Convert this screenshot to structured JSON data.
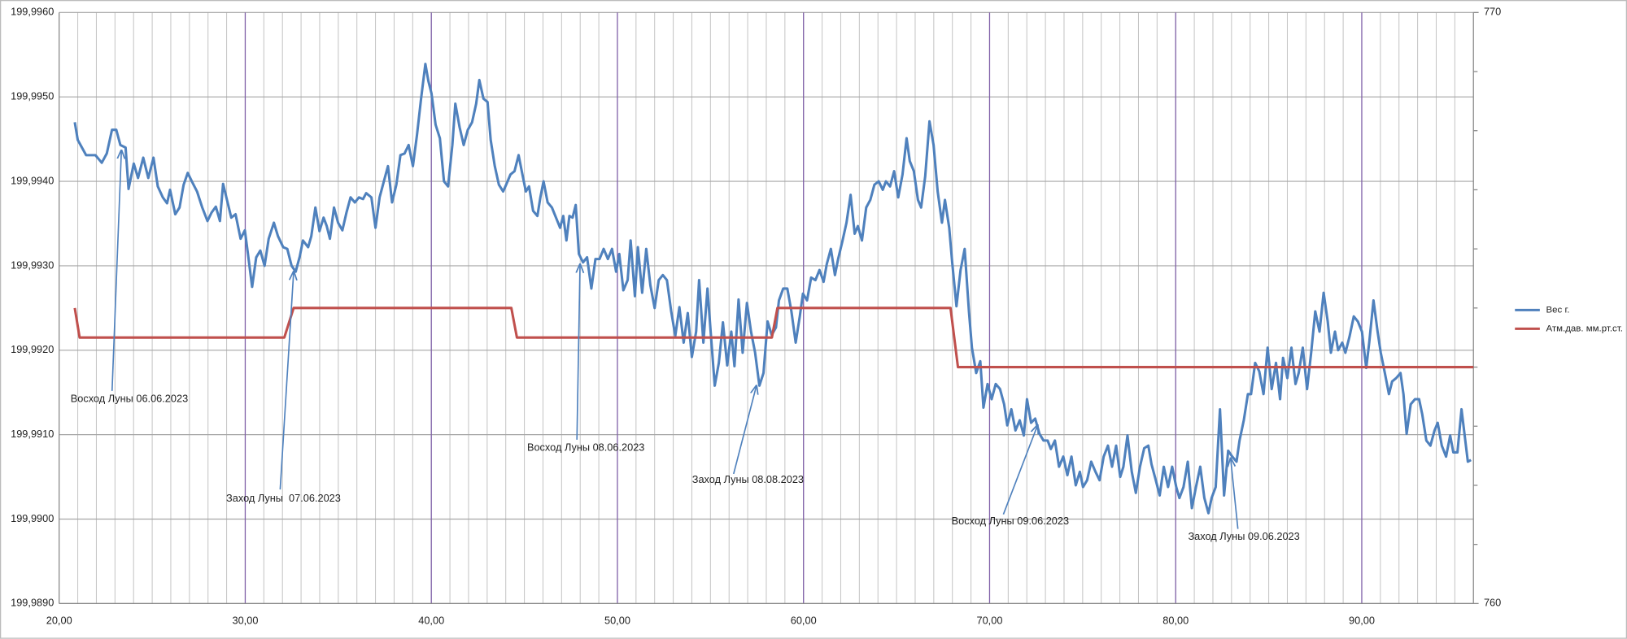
{
  "chart_data": {
    "type": "line",
    "xlim": [
      20,
      96
    ],
    "xticks": [
      {
        "value": 20,
        "label": "20,00"
      },
      {
        "value": 30,
        "label": "30,00"
      },
      {
        "value": 40,
        "label": "40,00"
      },
      {
        "value": 50,
        "label": "50,00"
      },
      {
        "value": 60,
        "label": "60,00"
      },
      {
        "value": 70,
        "label": "70,00"
      },
      {
        "value": 80,
        "label": "80,00"
      },
      {
        "value": 90,
        "label": "90,00"
      }
    ],
    "x_minor_grid_step": 1,
    "ylim": [
      199.989,
      199.996
    ],
    "yticks": [
      {
        "value": 199.989,
        "label": "199,9890"
      },
      {
        "value": 199.99,
        "label": "199,9900"
      },
      {
        "value": 199.991,
        "label": "199,9910"
      },
      {
        "value": 199.992,
        "label": "199,9920"
      },
      {
        "value": 199.993,
        "label": "199,9930"
      },
      {
        "value": 199.994,
        "label": "199,9940"
      },
      {
        "value": 199.995,
        "label": "199,9950"
      },
      {
        "value": 199.996,
        "label": "199,9960"
      }
    ],
    "y2lim": [
      760,
      770
    ],
    "y2ticks": [
      760,
      770
    ],
    "y2_minor_step": 1,
    "grid": true,
    "legend": "right",
    "series": [
      {
        "name": "Вес г.",
        "color": "#4f81bd",
        "x": [
          20.84,
          21.0,
          21.45,
          21.95,
          22.29,
          22.56,
          22.84,
          23.07,
          23.29,
          23.57,
          23.73,
          24.01,
          24.24,
          24.52,
          24.79,
          25.07,
          25.3,
          25.57,
          25.8,
          25.96,
          26.24,
          26.47,
          26.69,
          26.91,
          27.13,
          27.41,
          27.69,
          27.97,
          28.19,
          28.42,
          28.64,
          28.81,
          29.03,
          29.25,
          29.48,
          29.75,
          29.98,
          30.14,
          30.37,
          30.59,
          30.81,
          31.04,
          31.26,
          31.54,
          31.76,
          32.04,
          32.26,
          32.49,
          32.71,
          32.93,
          33.1,
          33.38,
          33.55,
          33.77,
          33.99,
          34.21,
          34.38,
          34.55,
          34.77,
          34.99,
          35.22,
          35.44,
          35.66,
          35.89,
          36.11,
          36.33,
          36.5,
          36.78,
          37.0,
          37.22,
          37.45,
          37.67,
          37.89,
          38.12,
          38.34,
          38.56,
          38.78,
          39.01,
          39.23,
          39.45,
          39.68,
          39.84,
          40.01,
          40.23,
          40.46,
          40.68,
          40.9,
          41.13,
          41.29,
          41.52,
          41.74,
          41.96,
          42.19,
          42.41,
          42.58,
          42.8,
          43.02,
          43.19,
          43.41,
          43.63,
          43.86,
          44.02,
          44.25,
          44.47,
          44.69,
          44.86,
          45.08,
          45.25,
          45.47,
          45.7,
          45.86,
          46.03,
          46.25,
          46.48,
          46.7,
          46.92,
          47.09,
          47.26,
          47.42,
          47.59,
          47.76,
          47.93,
          48.15,
          48.37,
          48.6,
          48.82,
          49.04,
          49.26,
          49.49,
          49.71,
          49.93,
          50.1,
          50.32,
          50.55,
          50.71,
          50.94,
          51.1,
          51.33,
          51.55,
          51.77,
          52.0,
          52.22,
          52.44,
          52.66,
          52.89,
          53.11,
          53.33,
          53.56,
          53.78,
          54.0,
          54.23,
          54.39,
          54.62,
          54.84,
          55.01,
          55.23,
          55.45,
          55.67,
          55.9,
          56.12,
          56.29,
          56.51,
          56.73,
          56.96,
          57.18,
          57.4,
          57.63,
          57.85,
          58.07,
          58.29,
          58.52,
          58.68,
          58.91,
          59.13,
          59.35,
          59.58,
          59.8,
          59.97,
          60.19,
          60.41,
          60.64,
          60.86,
          61.08,
          61.25,
          61.47,
          61.69,
          61.86,
          62.09,
          62.31,
          62.53,
          62.75,
          62.92,
          63.14,
          63.37,
          63.59,
          63.81,
          64.04,
          64.26,
          64.43,
          64.65,
          64.87,
          65.09,
          65.32,
          65.54,
          65.71,
          65.93,
          66.15,
          66.32,
          66.54,
          66.77,
          66.99,
          67.21,
          67.44,
          67.6,
          67.83,
          67.99,
          68.22,
          68.44,
          68.66,
          68.89,
          69.05,
          69.28,
          69.5,
          69.67,
          69.89,
          70.11,
          70.33,
          70.56,
          70.78,
          70.95,
          71.17,
          71.39,
          71.62,
          71.84,
          72.01,
          72.23,
          72.45,
          72.68,
          72.9,
          73.12,
          73.29,
          73.51,
          73.73,
          73.96,
          74.18,
          74.4,
          74.63,
          74.85,
          75.02,
          75.24,
          75.46,
          75.69,
          75.91,
          76.13,
          76.36,
          76.58,
          76.8,
          77.02,
          77.19,
          77.41,
          77.64,
          77.86,
          78.08,
          78.31,
          78.53,
          78.7,
          78.92,
          79.14,
          79.36,
          79.59,
          79.81,
          80.03,
          80.2,
          80.42,
          80.65,
          80.87,
          81.09,
          81.32,
          81.54,
          81.76,
          81.93,
          82.15,
          82.38,
          82.6,
          82.82,
          83.04,
          83.27,
          83.43,
          83.66,
          83.88,
          84.05,
          84.27,
          84.49,
          84.72,
          84.94,
          85.16,
          85.39,
          85.61,
          85.77,
          86.0,
          86.22,
          86.44,
          86.61,
          86.83,
          87.06,
          87.28,
          87.5,
          87.73,
          87.95,
          88.17,
          88.34,
          88.56,
          88.73,
          88.95,
          89.12,
          89.34,
          89.57,
          89.79,
          90.01,
          90.24,
          90.4,
          90.63,
          90.85,
          91.02,
          91.24,
          91.46,
          91.63,
          91.85,
          92.08,
          92.24,
          92.41,
          92.63,
          92.86,
          93.08,
          93.25,
          93.47,
          93.69,
          93.91,
          94.08,
          94.3,
          94.53,
          94.75,
          94.92,
          95.14,
          95.36,
          95.53,
          95.7,
          95.87
        ],
        "values": [
          199.9947,
          199.99449,
          199.99431,
          199.99431,
          199.99422,
          199.99433,
          199.99461,
          199.99461,
          199.99443,
          199.9944,
          199.99391,
          199.99421,
          199.99404,
          199.99428,
          199.99404,
          199.99428,
          199.99394,
          199.99381,
          199.99374,
          199.9939,
          199.99361,
          199.99369,
          199.99396,
          199.9941,
          199.994,
          199.99388,
          199.99369,
          199.99353,
          199.99363,
          199.9937,
          199.99353,
          199.99397,
          199.99377,
          199.99357,
          199.99361,
          199.99332,
          199.99342,
          199.99315,
          199.99275,
          199.9931,
          199.99318,
          199.993,
          199.99332,
          199.99351,
          199.99335,
          199.99322,
          199.9932,
          199.993,
          199.99293,
          199.99311,
          199.9933,
          199.99322,
          199.99335,
          199.99369,
          199.99341,
          199.99357,
          199.99347,
          199.99332,
          199.99369,
          199.99351,
          199.99342,
          199.99363,
          199.99381,
          199.99375,
          199.99381,
          199.99379,
          199.99386,
          199.99381,
          199.99345,
          199.99381,
          199.994,
          199.99418,
          199.99375,
          199.99396,
          199.99431,
          199.99433,
          199.99443,
          199.99418,
          199.99455,
          199.99498,
          199.99539,
          199.99519,
          199.99504,
          199.99467,
          199.99451,
          199.994,
          199.99394,
          199.99443,
          199.99492,
          199.99464,
          199.99443,
          199.99461,
          199.9947,
          199.99492,
          199.9952,
          199.99498,
          199.99494,
          199.99449,
          199.99418,
          199.99396,
          199.99388,
          199.99396,
          199.99408,
          199.99412,
          199.99431,
          199.99412,
          199.99388,
          199.99394,
          199.99365,
          199.99359,
          199.99381,
          199.994,
          199.99375,
          199.99369,
          199.99357,
          199.99345,
          199.99359,
          199.9933,
          199.99359,
          199.99357,
          199.99372,
          199.99314,
          199.99304,
          199.9931,
          199.99273,
          199.99308,
          199.99308,
          199.9932,
          199.99308,
          199.9932,
          199.99293,
          199.99314,
          199.99271,
          199.99283,
          199.9933,
          199.99264,
          199.99322,
          199.99268,
          199.9932,
          199.99277,
          199.9925,
          199.99283,
          199.99289,
          199.99283,
          199.99246,
          199.99217,
          199.99251,
          199.99209,
          199.99244,
          199.99192,
          199.99222,
          199.99283,
          199.99209,
          199.99273,
          199.99222,
          199.99158,
          199.99185,
          199.99233,
          199.99182,
          199.99222,
          199.99181,
          199.9926,
          199.99197,
          199.99256,
          199.99222,
          199.99197,
          199.99158,
          199.99173,
          199.99234,
          199.99218,
          199.99227,
          199.99259,
          199.99273,
          199.99273,
          199.99246,
          199.99209,
          199.9924,
          199.99267,
          199.99259,
          199.99286,
          199.99283,
          199.99295,
          199.99281,
          199.99302,
          199.9932,
          199.99289,
          199.99308,
          199.99329,
          199.99351,
          199.99384,
          199.99338,
          199.99347,
          199.9933,
          199.99369,
          199.99378,
          199.99396,
          199.994,
          199.9939,
          199.994,
          199.99394,
          199.99412,
          199.99381,
          199.99408,
          199.99451,
          199.99424,
          199.99412,
          199.99378,
          199.99369,
          199.99406,
          199.99471,
          199.99443,
          199.99388,
          199.99351,
          199.99378,
          199.99345,
          199.99304,
          199.99252,
          199.99295,
          199.9932,
          199.99246,
          199.99203,
          199.99173,
          199.99187,
          199.99132,
          199.9916,
          199.99142,
          199.9916,
          199.99154,
          199.99136,
          199.99111,
          199.9913,
          199.99105,
          199.99117,
          199.99099,
          199.99142,
          199.99114,
          199.99119,
          199.99101,
          199.99093,
          199.99093,
          199.99083,
          199.99093,
          199.99062,
          199.99074,
          199.99052,
          199.99074,
          199.9904,
          199.99056,
          199.99038,
          199.99046,
          199.99068,
          199.99056,
          199.99046,
          199.99074,
          199.99087,
          199.99062,
          199.99087,
          199.9905,
          199.99062,
          199.99099,
          199.99056,
          199.99031,
          199.99062,
          199.99084,
          199.99087,
          199.99065,
          199.99047,
          199.99028,
          199.99062,
          199.99038,
          199.99062,
          199.99038,
          199.99025,
          199.99038,
          199.99068,
          199.99013,
          199.99038,
          199.99062,
          199.99025,
          199.99007,
          199.99025,
          199.99038,
          199.9913,
          199.99028,
          199.99081,
          199.99074,
          199.99068,
          199.99093,
          199.99117,
          199.99148,
          199.99148,
          199.99185,
          199.99175,
          199.99148,
          199.99203,
          199.99154,
          199.99185,
          199.99142,
          199.99191,
          199.99167,
          199.99203,
          199.9916,
          199.99173,
          199.99203,
          199.99154,
          199.99197,
          199.99246,
          199.99222,
          199.99268,
          199.99234,
          199.99197,
          199.99222,
          199.992,
          199.99209,
          199.99197,
          199.99216,
          199.9924,
          199.99234,
          199.99222,
          199.99179,
          199.99209,
          199.99259,
          199.99222,
          199.99197,
          199.99173,
          199.99148,
          199.99163,
          199.99167,
          199.99173,
          199.99148,
          199.99101,
          199.99136,
          199.99142,
          199.99142,
          199.99124,
          199.99093,
          199.99087,
          199.99105,
          199.99114,
          199.99087,
          199.99074,
          199.99099,
          199.99079,
          199.99079,
          199.9913,
          199.99099,
          199.99068,
          199.9907
        ]
      },
      {
        "name": "Атм.дав. мм.рт.ст.",
        "color": "#c0504d",
        "axis": "y2",
        "x": [
          20.84,
          21.1,
          32.1,
          32.6,
          44.3,
          44.6,
          58.3,
          58.6,
          67.9,
          68.3,
          96
        ],
        "values": [
          765,
          764.5,
          764.5,
          765,
          765,
          764.5,
          764.5,
          765,
          765,
          764,
          764
        ]
      }
    ],
    "annotations": [
      {
        "text": "Восход Луны 06.06.2023"
      },
      {
        "text": "Заход Луны  07.06.2023"
      },
      {
        "text": "Восход Луны 08.06.2023"
      },
      {
        "text": "Заход Луны 08.08.2023"
      },
      {
        "text": "Восход Луны 09.06.2023"
      },
      {
        "text": "Заход Луны 09.06.2023"
      }
    ]
  }
}
